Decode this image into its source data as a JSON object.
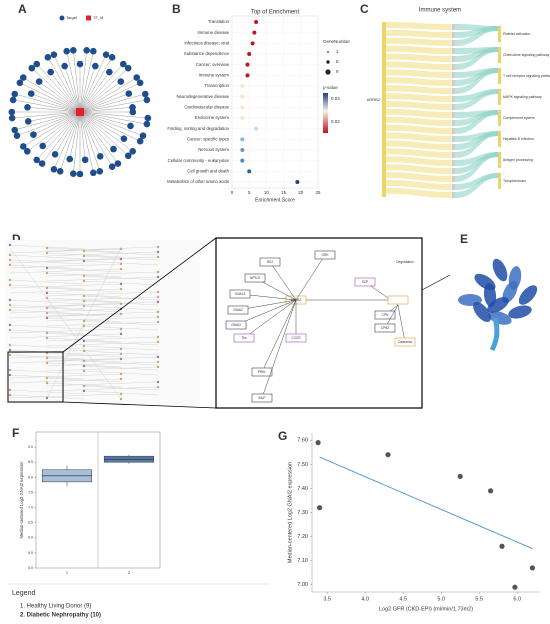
{
  "panel_labels": [
    "A",
    "B",
    "C",
    "D",
    "E",
    "F",
    "G"
  ],
  "network": {
    "legend": [
      "Target",
      "TF_id"
    ]
  },
  "sankey": {
    "title": "Immune system",
    "source": "ARRB2",
    "targets": [
      "Platelet activation",
      "Chemokine signaling pathway",
      "T cell receptor signaling pathway",
      "MAPK signaling pathway",
      "Complement system",
      "Hepatitis B infection",
      "Antigen processing",
      "Toxoplasmosis"
    ]
  },
  "pathway": {
    "nodes": [
      "ARRB2",
      "RK2",
      "NPS-R",
      "GNA13",
      "GNAI2",
      "GNAI3",
      "Tks",
      "GRK",
      "CXCR",
      "PRKL",
      "INLP",
      "SCP",
      "CPN",
      "CPB2",
      "Clearance",
      "Degradation"
    ]
  },
  "chart_data": [
    {
      "type": "dot",
      "title": "Top of Enrichment",
      "x_label": "Enrichment Score",
      "categories": [
        "Translation",
        "Immune disease",
        "Infectious disease: viral",
        "Substance dependence",
        "Cancer: overview",
        "Immune system",
        "Transcription",
        "Neurodegenerative disease",
        "Cardiovascular disease",
        "Endocrine system",
        "Folding, sorting and degradation",
        "Cancer: specific types",
        "Nervous system",
        "Cellular community - eukaryotes",
        "Cell growth and death",
        "Metabolism of other amino acids"
      ],
      "values": [
        7,
        6.5,
        6,
        5,
        4.5,
        4.5,
        3,
        3,
        3,
        3,
        7,
        3,
        3,
        3,
        5,
        19
      ],
      "colors": [
        "#c0151b",
        "#c0151b",
        "#c0151b",
        "#c0151b",
        "#c0151b",
        "#c0151b",
        "#f3e9c0",
        "#f3e9c0",
        "#f3e9c0",
        "#f3e9c0",
        "#bfe0ea",
        "#7bbad8",
        "#5b9ccb",
        "#4b8cc4",
        "#2d5fa8",
        "#243c8c"
      ],
      "xlim": [
        0,
        25
      ],
      "xticks": [
        0,
        5,
        10,
        15,
        20,
        25
      ],
      "size_legend_title": "GeneNumber",
      "size_legend": [
        1,
        5,
        9
      ],
      "color_legend_title": "p-value",
      "color_ticks": [
        0.04,
        0.02
      ]
    },
    {
      "type": "box",
      "y_label": "Median-centered Log2 GNAI2 expression",
      "categories": [
        "1",
        "2"
      ],
      "boxes": [
        {
          "low": 7.7,
          "q1": 7.85,
          "median": 8.05,
          "q3": 8.25,
          "high": 8.4
        },
        {
          "low": 8.45,
          "q1": 8.5,
          "median": 8.6,
          "q3": 8.7,
          "high": 8.75
        }
      ],
      "color": "#a9bfd8",
      "ylim": [
        5,
        9.5
      ],
      "yticks": [
        {
          "value": 5,
          "label": "5.0"
        },
        5.5,
        {
          "value": 6,
          "label": "6.0"
        },
        6.5,
        {
          "value": 7,
          "label": "7.0"
        },
        7.5,
        {
          "value": 8,
          "label": "8.0"
        },
        8.5,
        {
          "value": 9,
          "label": "9.0"
        }
      ],
      "legend_title": "Legend",
      "legend": [
        "1. Healthy Living Donor (9)",
        "2. Diabetic Nephropathy (10)"
      ]
    },
    {
      "type": "scatter",
      "x_label": "Log2 GFR (CKD-EPI) (ml/min/1.73m2)",
      "y_label": "Median-centered Log2 GNAI2 expression",
      "x": [
        3.38,
        3.4,
        4.3,
        5.25,
        5.65,
        5.8,
        5.97,
        6.2
      ],
      "values": [
        7.59,
        7.32,
        7.54,
        7.45,
        7.39,
        7.16,
        6.99,
        7.07
      ],
      "color": "#555555",
      "trendline": {
        "x": [
          3.4,
          6.2
        ],
        "y": [
          7.53,
          7.15
        ],
        "color": "#5b9bd5"
      },
      "xlim": [
        3.3,
        6.3
      ],
      "xticks": [
        3.5,
        {
          "value": 4,
          "label": "4.0"
        },
        4.5,
        {
          "value": 5,
          "label": "5.0"
        },
        5.5,
        {
          "value": 6,
          "label": "6.0"
        }
      ],
      "ylim": [
        6.97,
        7.63
      ],
      "yticks": [
        {
          "value": 7,
          "label": "7.00"
        },
        {
          "value": 7.1,
          "label": "7.10"
        },
        {
          "value": 7.2,
          "label": "7.20"
        },
        {
          "value": 7.3,
          "label": "7.30"
        },
        {
          "value": 7.4,
          "label": "7.40"
        },
        {
          "value": 7.5,
          "label": "7.50"
        },
        {
          "value": 7.6,
          "label": "7.60"
        }
      ]
    }
  ]
}
